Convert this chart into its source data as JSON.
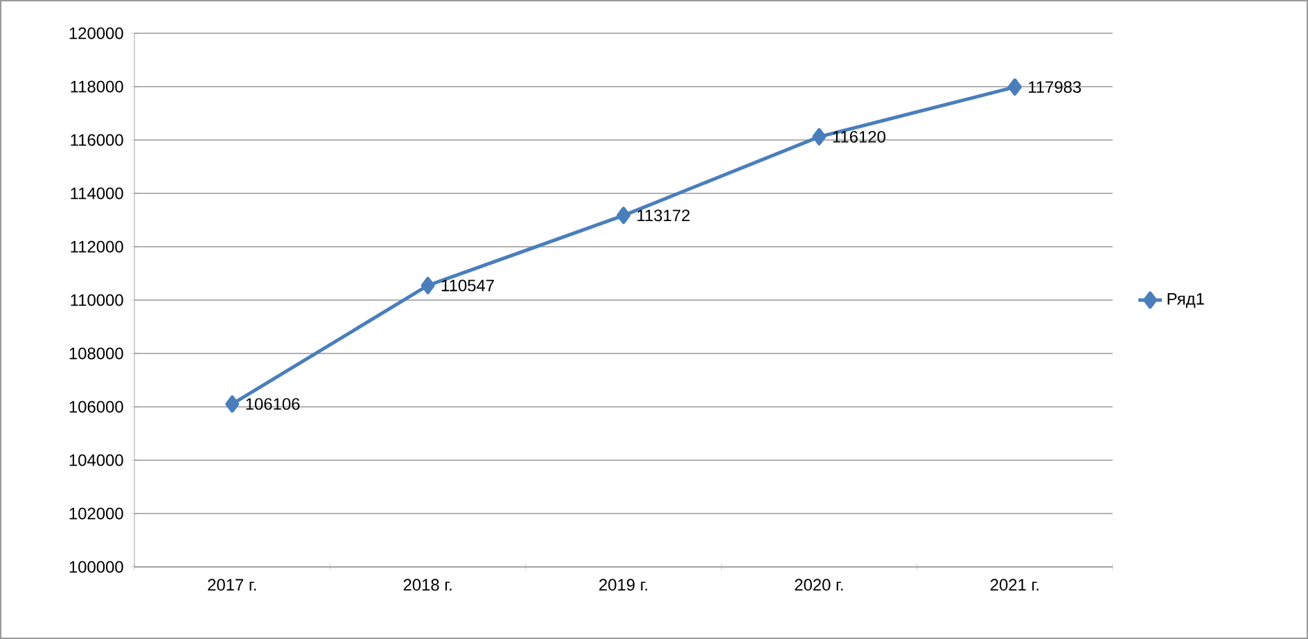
{
  "chart_data": {
    "type": "line",
    "categories": [
      "2017 г.",
      "2018 г.",
      "2019 г.",
      "2020 г.",
      "2021 г."
    ],
    "series": [
      {
        "name": "Ряд1",
        "color": "#4a7ebb",
        "values": [
          106106,
          110547,
          113172,
          116120,
          117983
        ]
      }
    ],
    "ylim": [
      100000,
      120000
    ],
    "yticks": [
      100000,
      102000,
      104000,
      106000,
      108000,
      110000,
      112000,
      114000,
      116000,
      118000,
      120000
    ],
    "grid": "y",
    "legend": "right",
    "marker": "diamond",
    "line_style": "solid",
    "data_labels": true
  }
}
